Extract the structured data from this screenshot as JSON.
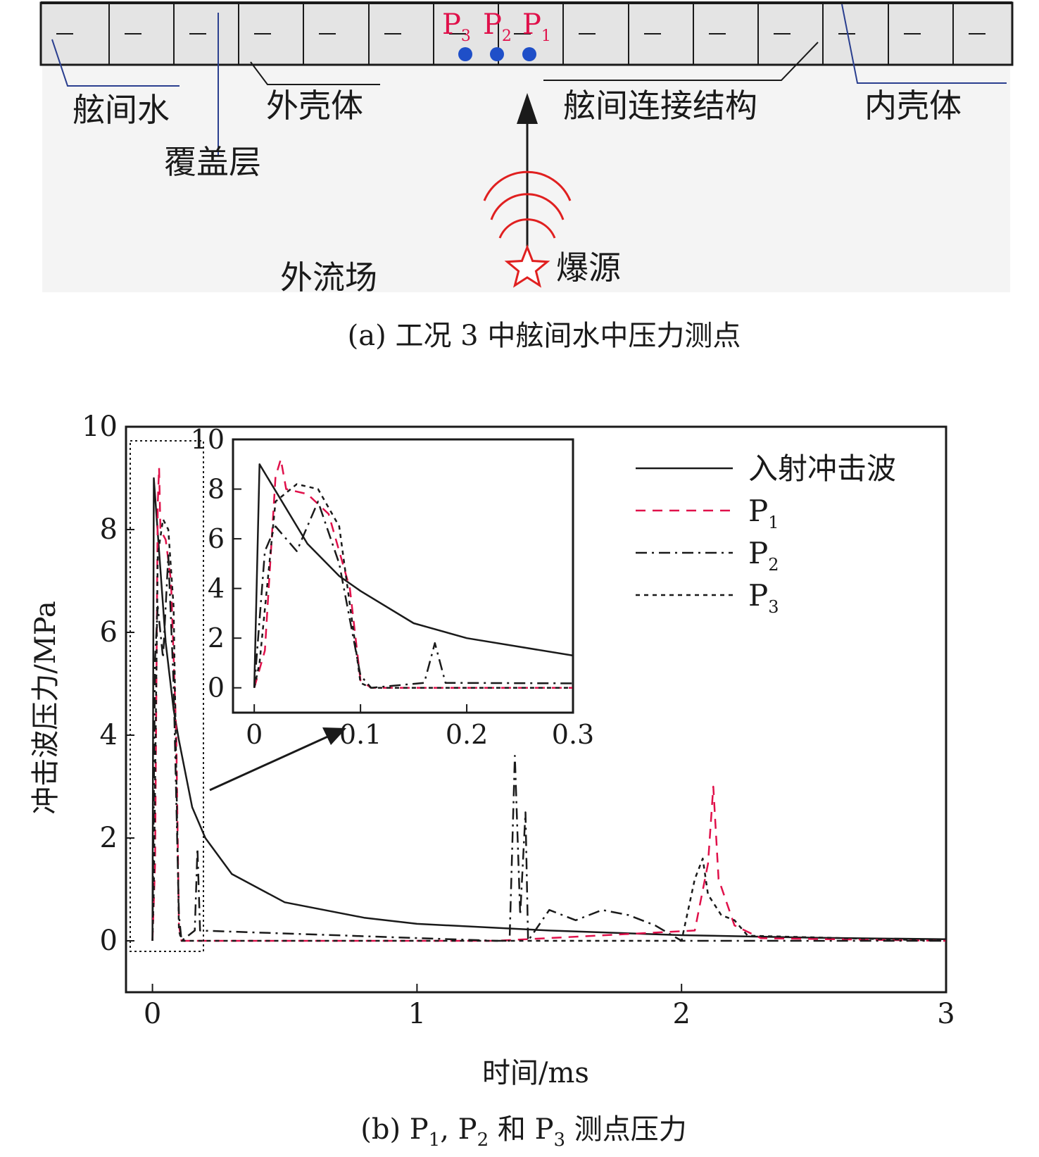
{
  "diagram": {
    "labels": {
      "inter_shell_water": "舷间水",
      "cover_layer": "覆盖层",
      "outer_shell": "外壳体",
      "connection": "舷间连接结构",
      "inner_shell": "内壳体",
      "outer_field": "外流场",
      "source": "爆源"
    },
    "points": [
      "P3",
      "P2",
      "P1"
    ],
    "point_color": "#e0104a",
    "dot_color": "#1f4fc8",
    "wave_color": "#e02020",
    "caption": "(a) 工况 3 中舷间水中压力测点"
  },
  "chart_data": {
    "type": "line",
    "xlabel": "时间/ms",
    "ylabel": "冲击波压力/MPa",
    "xlim": [
      -0.1,
      3.0
    ],
    "ylim": [
      -1,
      10
    ],
    "xticks": [
      "0",
      "1",
      "2",
      "3"
    ],
    "yticks": [
      "0",
      "2",
      "4",
      "6",
      "8",
      "10"
    ],
    "legend_position": "top-right",
    "series": [
      {
        "name": "入射冲击波",
        "style": "solid",
        "color": "#1a1a1a",
        "x": [
          0,
          0.005,
          0.05,
          0.08,
          0.1,
          0.15,
          0.2,
          0.3,
          0.5,
          0.8,
          1.0,
          1.5,
          2.0,
          2.5,
          3.0
        ],
        "y": [
          0,
          9.0,
          5.8,
          4.5,
          3.9,
          2.6,
          2.0,
          1.3,
          0.75,
          0.45,
          0.33,
          0.2,
          0.11,
          0.06,
          0.03
        ]
      },
      {
        "name": "P1",
        "style": "dashed",
        "color": "#e0104a",
        "x": [
          0,
          0.01,
          0.02,
          0.025,
          0.03,
          0.05,
          0.07,
          0.09,
          0.1,
          0.11,
          1.3,
          2.05,
          2.1,
          2.12,
          2.14,
          2.2,
          2.3,
          3.0
        ],
        "y": [
          0,
          1.5,
          8.5,
          9.2,
          8.0,
          7.8,
          7.0,
          4.0,
          0.3,
          0,
          0,
          0.2,
          1.5,
          3.0,
          1.2,
          0.3,
          0.05,
          0
        ]
      },
      {
        "name": "P2",
        "style": "dashdot",
        "color": "#1a1a1a",
        "x": [
          0,
          0.01,
          0.02,
          0.04,
          0.06,
          0.08,
          0.1,
          0.11,
          0.16,
          0.17,
          0.18,
          1.3,
          1.35,
          1.37,
          1.39,
          1.41,
          1.42,
          1.5,
          1.6,
          1.7,
          1.8,
          1.9,
          2.0,
          3.0
        ],
        "y": [
          0,
          5.5,
          6.5,
          5.5,
          7.5,
          5.0,
          0.5,
          0,
          0.2,
          1.8,
          0.2,
          0,
          0,
          3.6,
          0.5,
          2.5,
          0,
          0.6,
          0.4,
          0.6,
          0.5,
          0.3,
          0,
          0
        ]
      },
      {
        "name": "P3",
        "style": "dotted",
        "color": "#1a1a1a",
        "x": [
          0,
          0.005,
          0.02,
          0.04,
          0.06,
          0.08,
          0.1,
          0.11,
          2.0,
          2.05,
          2.08,
          2.1,
          2.15,
          2.2,
          2.25,
          3.0
        ],
        "y": [
          0,
          1.0,
          7.5,
          8.2,
          8.0,
          6.5,
          0.2,
          0,
          0,
          1.2,
          1.6,
          0.9,
          0.5,
          0.4,
          0.1,
          0
        ]
      }
    ],
    "inset": {
      "xlim": [
        -0.02,
        0.3
      ],
      "ylim": [
        -1,
        10
      ],
      "xticks": [
        "0",
        "0.1",
        "0.2",
        "0.3"
      ],
      "yticks": [
        "0",
        "2",
        "4",
        "6",
        "8",
        "10"
      ]
    },
    "caption": "(b) P1, P2 和 P3 测点压力"
  }
}
